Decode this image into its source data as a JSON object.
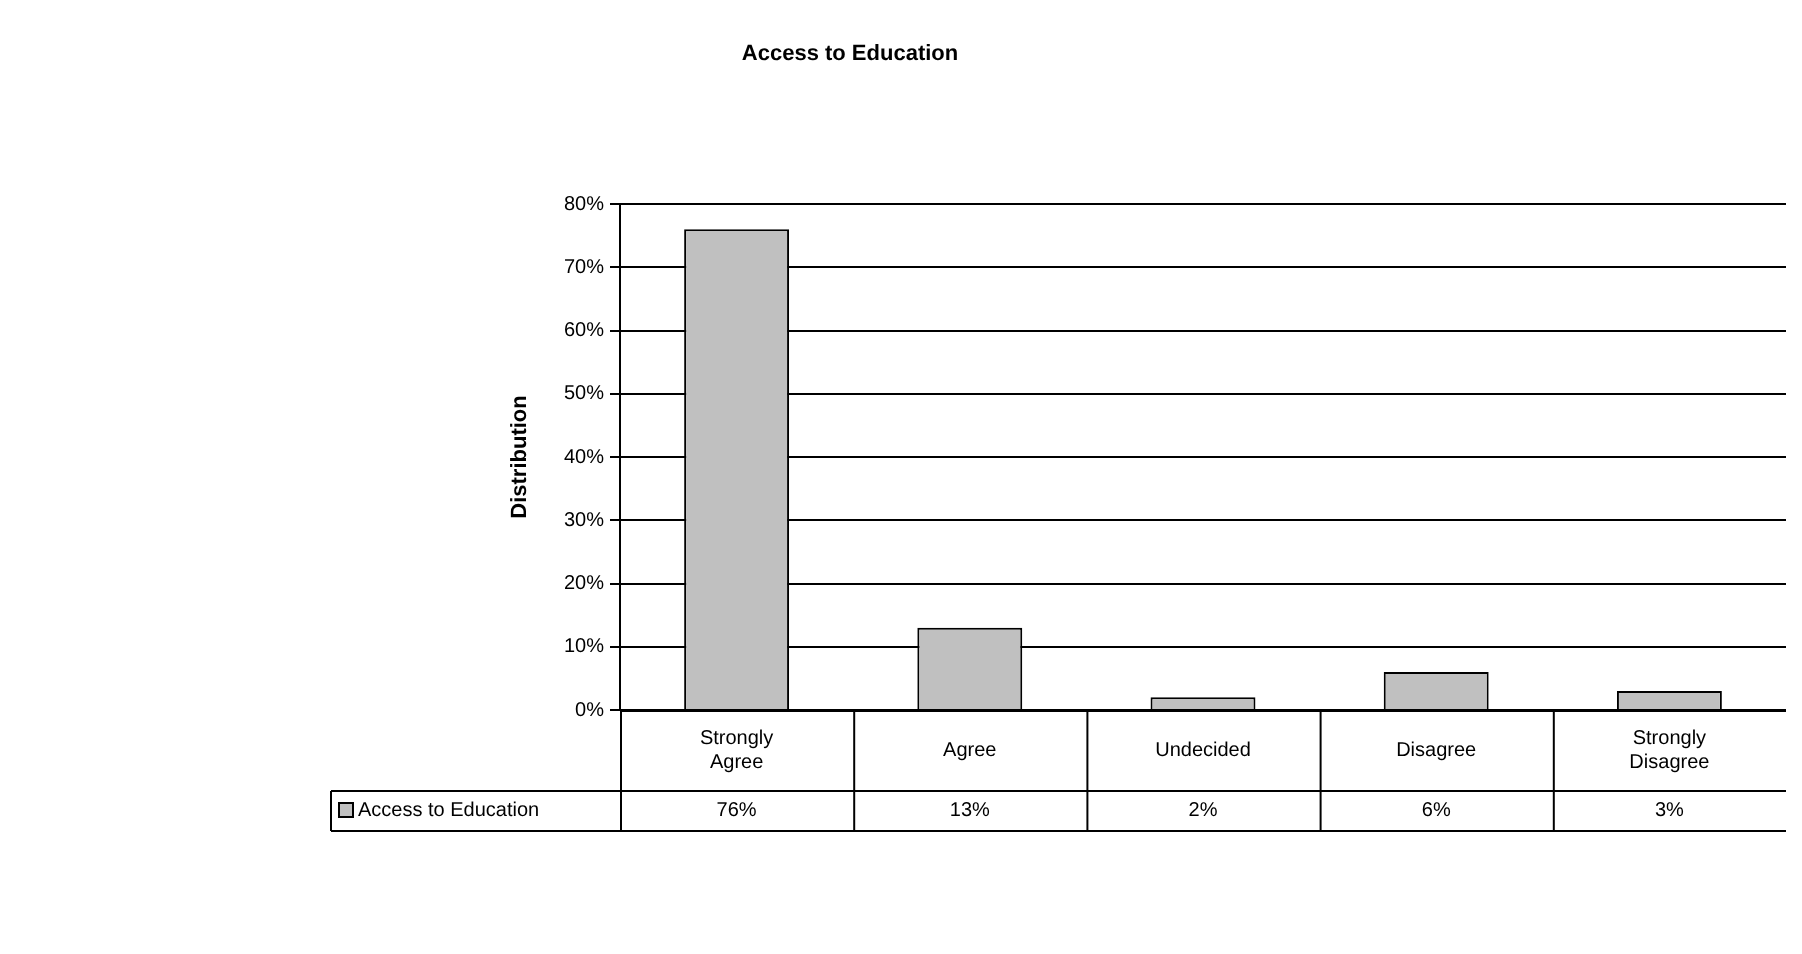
{
  "chart_data": {
    "type": "bar",
    "title": "Access to Education",
    "ylabel": "Distribution",
    "categories": [
      "Strongly Agree",
      "Agree",
      "Undecided",
      "Disagree",
      "Strongly Disagree"
    ],
    "series": [
      {
        "name": "Access to Education",
        "color": "#c0c0c0",
        "values": [
          76,
          13,
          2,
          6,
          3
        ],
        "value_labels": [
          "76%",
          "13%",
          "2%",
          "6%",
          "3%"
        ]
      }
    ],
    "ylim": [
      0,
      80
    ],
    "yticks": [
      {
        "value": 0,
        "label": "0%"
      },
      {
        "value": 10,
        "label": "10%"
      },
      {
        "value": 20,
        "label": "20%"
      },
      {
        "value": 30,
        "label": "30%"
      },
      {
        "value": 40,
        "label": "40%"
      },
      {
        "value": 50,
        "label": "50%"
      },
      {
        "value": 60,
        "label": "60%"
      },
      {
        "value": 70,
        "label": "70%"
      },
      {
        "value": 80,
        "label": "80%"
      }
    ],
    "grid": "y",
    "legend": "bottom left"
  }
}
